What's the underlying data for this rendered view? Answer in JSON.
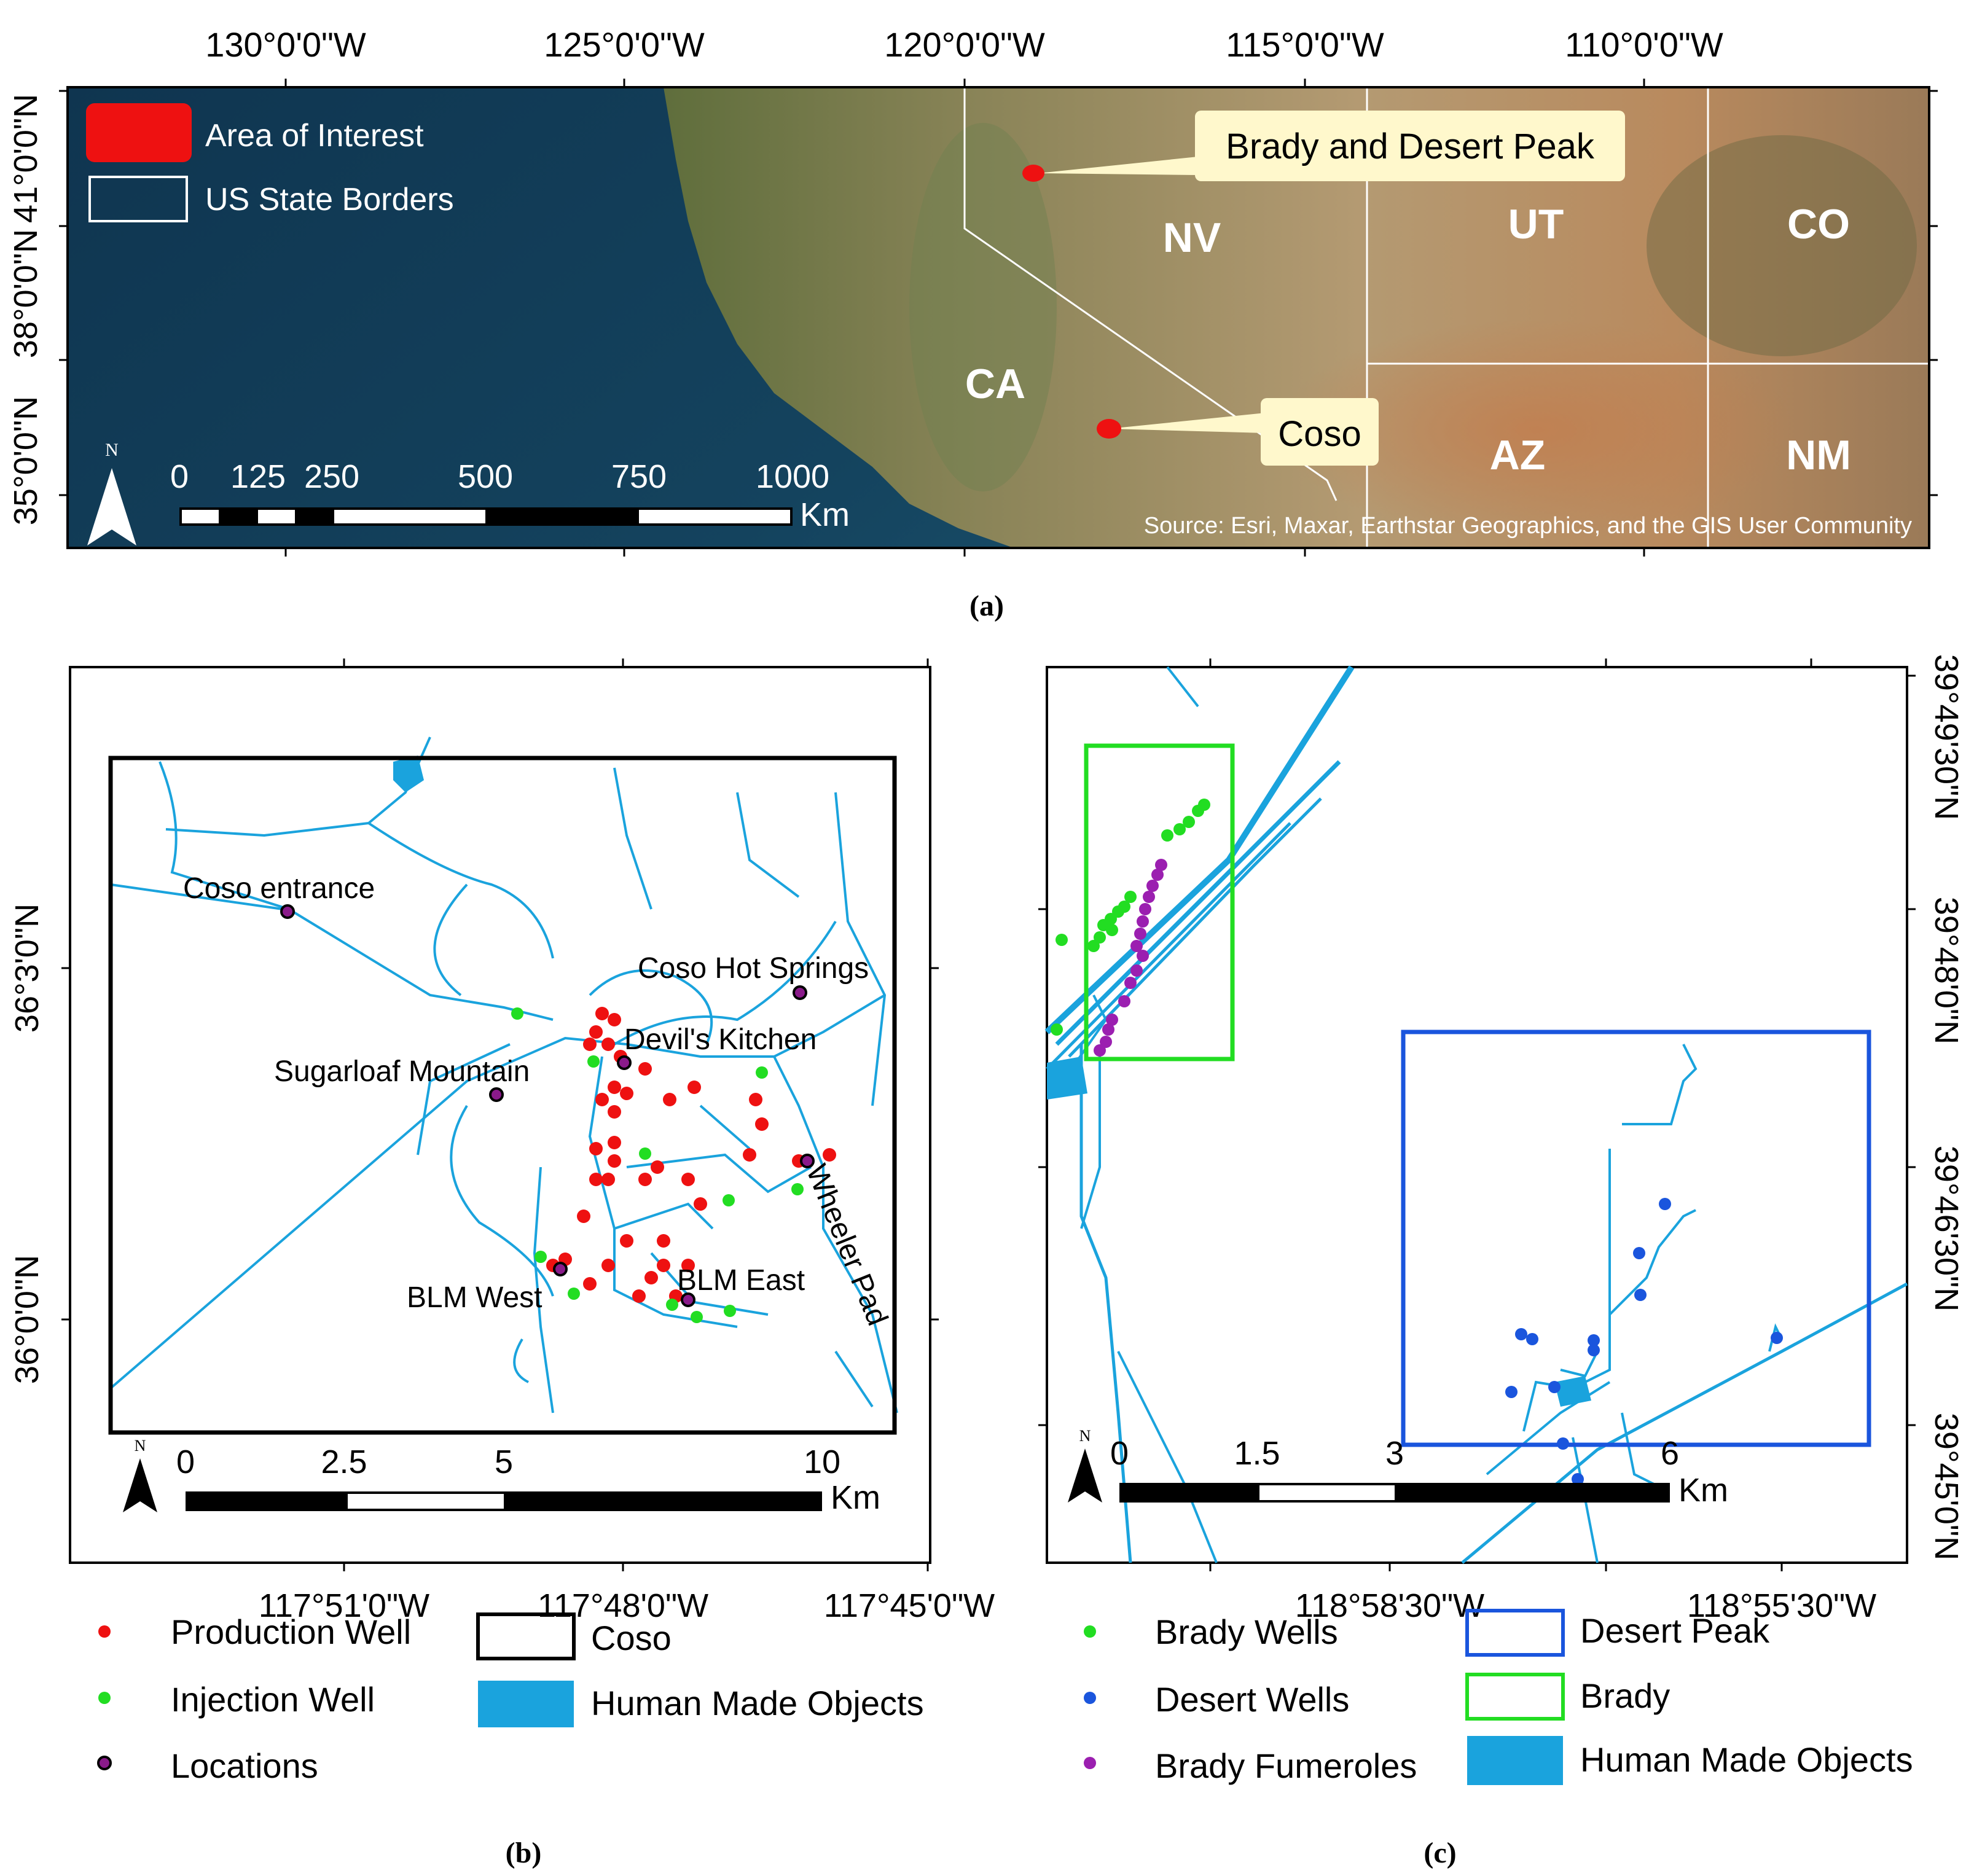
{
  "panel_a": {
    "top_ticks": [
      "130°0'0\"W",
      "125°0'0\"W",
      "120°0'0\"W",
      "115°0'0\"W",
      "110°0'0\"W"
    ],
    "left_ticks": [
      "41°0'0\"N",
      "38°0'0\"N",
      "35°0'0\"N"
    ],
    "legend": [
      {
        "label": "Area of Interest",
        "color": "#ee1111"
      },
      {
        "label": "US State Borders",
        "color": "#ffffff"
      }
    ],
    "callouts": [
      "Brady and Desert Peak",
      "Coso"
    ],
    "states": [
      "NV",
      "UT",
      "CO",
      "CA",
      "AZ",
      "NM"
    ],
    "scale_labels": [
      "0",
      "125",
      "250",
      "500",
      "750",
      "1000"
    ],
    "scale_unit": "Km",
    "north": "N",
    "source": "Source: Esri, Maxar, Earthstar Geographics, and the GIS User Community",
    "caption": "(a)"
  },
  "panel_b": {
    "bottom_ticks": [
      "117°51'0\"W",
      "117°48'0\"W",
      "117°45'0\"W"
    ],
    "left_ticks": [
      "36°3'0\"N",
      "36°0'0\"N"
    ],
    "place_labels": [
      "Coso entrance",
      "Coso Hot Springs",
      "Devil's Kitchen",
      "Sugarloaf Mountain",
      "Wheeler Pad",
      "BLM West",
      "BLM East"
    ],
    "scale_labels": [
      "0",
      "2.5",
      "5",
      "10"
    ],
    "scale_unit": "Km",
    "north": "N",
    "legend_points": [
      {
        "label": "Production Well",
        "color": "#ee1111"
      },
      {
        "label": "Injection Well",
        "color": "#22dd22"
      },
      {
        "label": "Locations",
        "color": "#8a1a8a"
      }
    ],
    "legend_boxes": [
      {
        "label": "Coso",
        "color": "#000000"
      },
      {
        "label": "Human Made Objects",
        "color": "#1aa3dd"
      }
    ],
    "caption": "(b)"
  },
  "panel_c": {
    "bottom_ticks": [
      "118°58'30\"W",
      "118°55'30\"W"
    ],
    "right_ticks": [
      "39°49'30\"N",
      "39°48'0\"N",
      "39°46'30\"N",
      "39°45'0\"N"
    ],
    "scale_labels": [
      "0",
      "1.5",
      "3",
      "6"
    ],
    "scale_unit": "Km",
    "north": "N",
    "legend_points": [
      {
        "label": "Brady Wells",
        "color": "#22dd22"
      },
      {
        "label": "Desert Wells",
        "color": "#1a55dd"
      },
      {
        "label": "Brady Fumeroles",
        "color": "#9b1fb0"
      }
    ],
    "legend_boxes": [
      {
        "label": "Desert Peak",
        "color": "#1a55dd"
      },
      {
        "label": "Brady",
        "color": "#22dd22"
      },
      {
        "label": "Human Made Objects",
        "color": "#1aa3dd"
      }
    ],
    "caption": "(c)"
  }
}
